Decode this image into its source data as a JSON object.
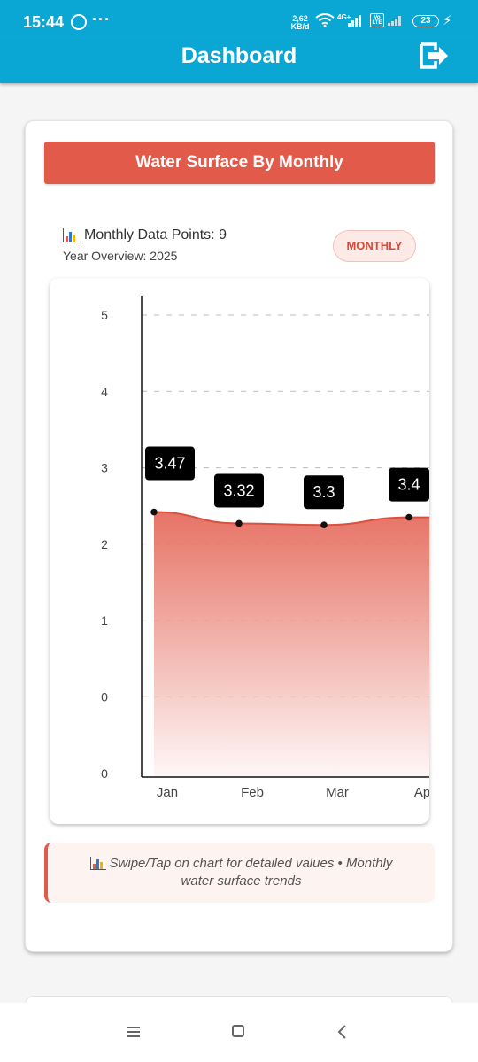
{
  "status_bar": {
    "time": "15:44",
    "dots": "···",
    "speed_value": "2,62",
    "speed_unit": "KB/d",
    "network": "4G+",
    "volte": "Vo LTE",
    "battery": "23"
  },
  "app_bar": {
    "title": "Dashboard"
  },
  "card": {
    "header": "Water Surface By Monthly",
    "data_points": "Monthly Data Points: 9",
    "year_overview": "Year Overview: 2025",
    "badge": "MONTHLY",
    "hint": "Swipe/Tap on chart for detailed values • Monthly water surface trends"
  },
  "colors": {
    "primary": "#0aa7d4",
    "accent": "#e25a4a",
    "badge_bg": "#fde9e6"
  },
  "chart_data": {
    "type": "area",
    "x": [
      "Jan",
      "Feb",
      "Mar",
      "Ap"
    ],
    "series": [
      {
        "values": [
          3.47,
          3.32,
          3.3,
          3.4
        ]
      }
    ],
    "data_labels": [
      "3.47",
      "3.32",
      "3.3",
      "3.4"
    ],
    "y_tick_labels": [
      "5",
      "4",
      "3",
      "2",
      "1",
      "0",
      "0"
    ],
    "grid": "dashed horizontal",
    "color": "#e25a4a"
  }
}
